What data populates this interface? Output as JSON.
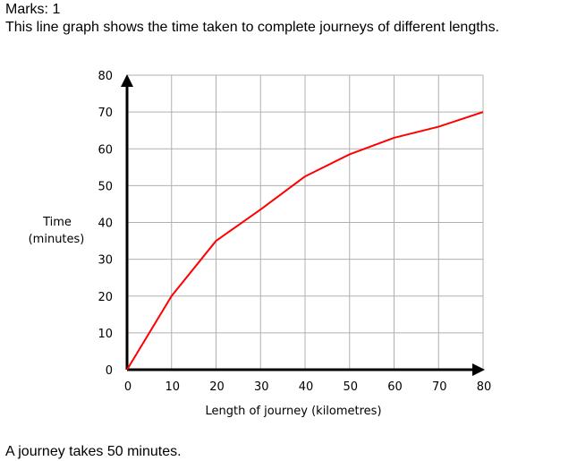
{
  "header": {
    "marks": "Marks: 1",
    "question": "This line graph shows the time taken to complete journeys of different lengths."
  },
  "footer": {
    "text": "A journey takes 50 minutes."
  },
  "chart_data": {
    "type": "line",
    "title": "",
    "xlabel": "Length of journey (kilometres)",
    "ylabel_line1": "Time",
    "ylabel_line2": "(minutes)",
    "xlim": [
      0,
      80
    ],
    "ylim": [
      0,
      80
    ],
    "x_ticks": [
      0,
      10,
      20,
      30,
      40,
      50,
      60,
      70,
      80
    ],
    "y_ticks": [
      0,
      10,
      20,
      30,
      40,
      50,
      60,
      70,
      80
    ],
    "grid": true,
    "line_color": "#ff0000",
    "grid_color": "#b0b0b0",
    "series": [
      {
        "x": [
          0,
          10,
          20,
          30,
          40,
          50,
          60,
          70,
          80
        ],
        "y": [
          0,
          20,
          35,
          43.5,
          52.5,
          58.5,
          63,
          66,
          70
        ]
      }
    ]
  }
}
